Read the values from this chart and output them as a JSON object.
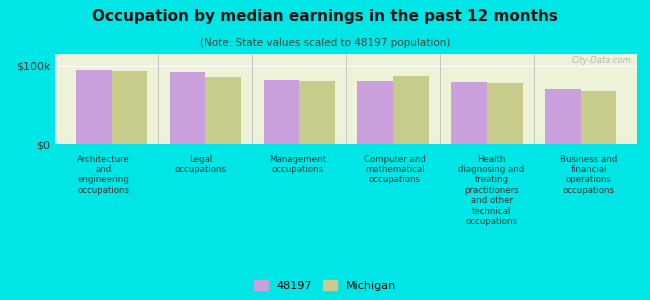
{
  "title": "Occupation by median earnings in the past 12 months",
  "subtitle": "(Note: State values scaled to 48197 population)",
  "categories": [
    "Architecture\nand\nengineering\noccupations",
    "Legal\noccupations",
    "Management\noccupations",
    "Computer and\nmathematical\noccupations",
    "Health\ndiagnosing and\ntreating\npractitioners\nand other\ntechnical\noccupations",
    "Business and\nfinancial\noperations\noccupations"
  ],
  "values_48197": [
    95000,
    92000,
    82000,
    80000,
    79000,
    70000
  ],
  "values_michigan": [
    93000,
    86000,
    81000,
    87000,
    78000,
    68000
  ],
  "bar_color_48197": "#c9a0dc",
  "bar_color_michigan": "#c8cc8a",
  "ylabel_ticks": [
    "$0",
    "$100k"
  ],
  "ytick_values": [
    0,
    100000
  ],
  "background_outer": "#00e5e5",
  "background_plot": "#eef2d8",
  "legend_label_48197": "48197",
  "legend_label_michigan": "Michigan",
  "watermark": "City-Data.com"
}
